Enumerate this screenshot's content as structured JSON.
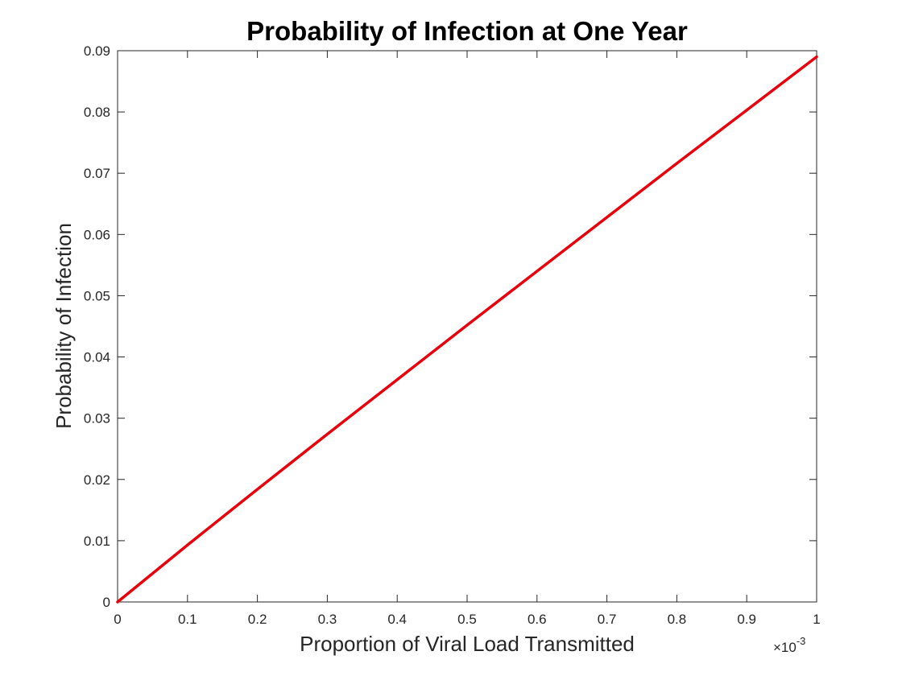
{
  "chart_data": {
    "type": "line",
    "title": "Probability of Infection at One Year",
    "xlabel": "Proportion of Viral Load Transmitted",
    "ylabel": "Probability of Infection",
    "x_exponent_multiplier": "×10",
    "x_exponent_power": "-3",
    "xlim": [
      0,
      1
    ],
    "ylim": [
      0,
      0.09
    ],
    "x_ticks": [
      0,
      0.1,
      0.2,
      0.3,
      0.4,
      0.5,
      0.6,
      0.7,
      0.8,
      0.9,
      1
    ],
    "x_tick_labels": [
      "0",
      "0.1",
      "0.2",
      "0.3",
      "0.4",
      "0.5",
      "0.6",
      "0.7",
      "0.8",
      "0.9",
      "1"
    ],
    "y_ticks": [
      0,
      0.01,
      0.02,
      0.03,
      0.04,
      0.05,
      0.06,
      0.07,
      0.08,
      0.09
    ],
    "y_tick_labels": [
      "0",
      "0.01",
      "0.02",
      "0.03",
      "0.04",
      "0.05",
      "0.06",
      "0.07",
      "0.08",
      "0.09"
    ],
    "grid": false,
    "series": [
      {
        "color": "#e8000b",
        "x": [
          0,
          0.1,
          0.2,
          0.3,
          0.4,
          0.5,
          0.6,
          0.7,
          0.8,
          0.9,
          1
        ],
        "y": [
          0,
          0.0093,
          0.0184,
          0.0274,
          0.0363,
          0.0452,
          0.054,
          0.0628,
          0.0716,
          0.0803,
          0.089
        ]
      }
    ]
  }
}
